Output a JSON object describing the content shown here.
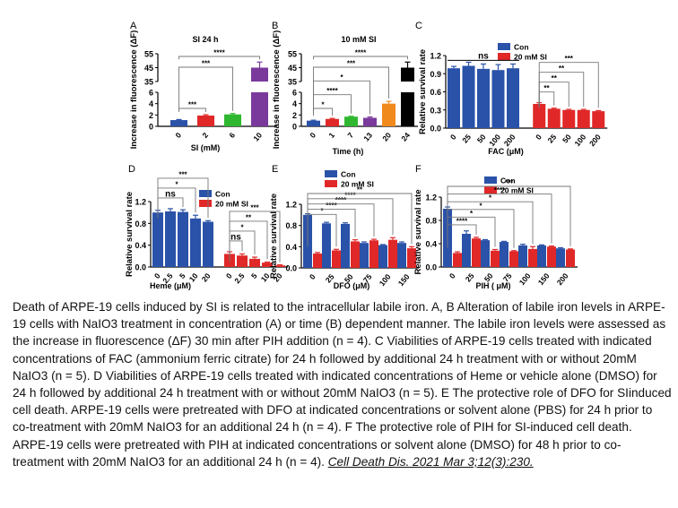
{
  "chart_data": [
    {
      "panel": "A",
      "type": "bar",
      "title": "SI 24 h",
      "xlabel": "SI (mM)",
      "ylabel": "Increase in fluorescence (ΔF)",
      "categories": [
        "0",
        "2",
        "6",
        "10"
      ],
      "values": [
        1.1,
        1.9,
        2.1,
        45
      ],
      "errors": [
        0.1,
        0.15,
        0.15,
        4
      ],
      "colors": [
        "#2a52a8",
        "#e02828",
        "#2fb82f",
        "#7a3a9c"
      ],
      "y_break": {
        "lower": [
          0,
          6
        ],
        "upper": [
          35,
          55
        ]
      },
      "yticks_lower": [
        0,
        2,
        4,
        6
      ],
      "yticks_upper": [
        35,
        45,
        55
      ],
      "significance": [
        {
          "from": 0,
          "to": 1,
          "label": "***"
        },
        {
          "from": 0,
          "to": 2,
          "label": "***"
        },
        {
          "from": 0,
          "to": 3,
          "label": "****"
        }
      ]
    },
    {
      "panel": "B",
      "type": "bar",
      "title": "10 mM SI",
      "xlabel": "Time (h)",
      "ylabel": "Increase in fluorescence (ΔF)",
      "categories": [
        "0",
        "1",
        "7",
        "13",
        "20",
        "24"
      ],
      "values": [
        1.0,
        1.3,
        1.7,
        1.5,
        4.0,
        45
      ],
      "errors": [
        0.08,
        0.1,
        0.08,
        0.15,
        0.4,
        4
      ],
      "colors": [
        "#2a52a8",
        "#e02828",
        "#2fb82f",
        "#7a3a9c",
        "#f08a1c",
        "#000000"
      ],
      "y_break": {
        "lower": [
          0,
          6
        ],
        "upper": [
          35,
          55
        ]
      },
      "yticks_lower": [
        0,
        2,
        4,
        6
      ],
      "yticks_upper": [
        35,
        45,
        55
      ],
      "significance": [
        {
          "from": 0,
          "to": 1,
          "label": "*"
        },
        {
          "from": 0,
          "to": 2,
          "label": "****"
        },
        {
          "from": 0,
          "to": 3,
          "label": "*"
        },
        {
          "from": 0,
          "to": 4,
          "label": "***"
        },
        {
          "from": 0,
          "to": 5,
          "label": "****"
        }
      ]
    },
    {
      "panel": "C",
      "type": "bar",
      "title": "",
      "xlabel": "FAC (μM)",
      "ylabel": "Relative survival rate",
      "ylim": [
        0,
        1.2
      ],
      "yticks": [
        "0.0",
        "0.3",
        "0.6",
        "0.9",
        "1.2"
      ],
      "layout": "grouped-separate",
      "legend": [
        "Con",
        "20 mM SI"
      ],
      "legend_position": "top-right",
      "series": [
        {
          "name": "Con",
          "color": "#2a52a8",
          "categories": [
            "0",
            "25",
            "50",
            "100",
            "200"
          ],
          "values": [
            0.99,
            1.03,
            0.98,
            0.96,
            0.99
          ],
          "errors": [
            0.03,
            0.06,
            0.08,
            0.09,
            0.07
          ]
        },
        {
          "name": "20 mM SI",
          "color": "#e02828",
          "categories": [
            "0",
            "25",
            "50",
            "100",
            "200"
          ],
          "values": [
            0.4,
            0.32,
            0.3,
            0.3,
            0.28
          ],
          "errors": [
            0.02,
            0.01,
            0.01,
            0.01,
            0.01
          ]
        }
      ],
      "significance": [
        {
          "series": 0,
          "from": 0,
          "to": 4,
          "label": "ns"
        },
        {
          "series": 1,
          "from": 0,
          "to": 1,
          "label": "**"
        },
        {
          "series": 1,
          "from": 0,
          "to": 2,
          "label": "**"
        },
        {
          "series": 1,
          "from": 0,
          "to": 3,
          "label": "**"
        },
        {
          "series": 1,
          "from": 0,
          "to": 4,
          "label": "***"
        }
      ]
    },
    {
      "panel": "D",
      "type": "bar",
      "title": "",
      "xlabel": "Heme (μM)",
      "ylabel": "Relative survival rate",
      "ylim": [
        0,
        1.2
      ],
      "yticks": [
        "0.0",
        "0.4",
        "0.8",
        "1.2"
      ],
      "layout": "grouped-separate",
      "legend": [
        "Con",
        "20 mM SI"
      ],
      "legend_position": "top-right",
      "series": [
        {
          "name": "Con",
          "color": "#2a52a8",
          "categories": [
            "0",
            "2.5",
            "5",
            "10",
            "20"
          ],
          "values": [
            1.0,
            1.02,
            1.01,
            0.89,
            0.83
          ],
          "errors": [
            0.04,
            0.05,
            0.04,
            0.06,
            0.02
          ]
        },
        {
          "name": "20 mM SI",
          "color": "#e02828",
          "categories": [
            "0",
            "2.5",
            "5",
            "10",
            "20"
          ],
          "values": [
            0.24,
            0.21,
            0.15,
            0.08,
            0.03
          ],
          "errors": [
            0.04,
            0.03,
            0.03,
            0.01,
            0.01
          ]
        }
      ],
      "significance": [
        {
          "series": 0,
          "from": 0,
          "to": 2,
          "label": "ns"
        },
        {
          "series": 0,
          "from": 0,
          "to": 3,
          "label": "*"
        },
        {
          "series": 0,
          "from": 0,
          "to": 4,
          "label": "***"
        },
        {
          "series": 1,
          "from": 0,
          "to": 1,
          "label": "ns"
        },
        {
          "series": 1,
          "from": 0,
          "to": 2,
          "label": "*"
        },
        {
          "series": 1,
          "from": 0,
          "to": 3,
          "label": "**"
        },
        {
          "series": 1,
          "from": 0,
          "to": 4,
          "label": "***"
        }
      ]
    },
    {
      "panel": "E",
      "type": "bar",
      "title": "",
      "xlabel": "DFO (μM)",
      "ylabel": "Relative survival rate",
      "ylim": [
        0,
        1.2
      ],
      "yticks": [
        "0.0",
        "0.4",
        "0.8",
        "1.2"
      ],
      "layout": "grouped-paired",
      "legend": [
        "Con",
        "20 mM SI"
      ],
      "legend_position": "top",
      "categories": [
        "0",
        "25",
        "50",
        "75",
        "100",
        "150"
      ],
      "series": [
        {
          "name": "Con",
          "color": "#2a52a8",
          "values": [
            1.0,
            0.84,
            0.83,
            0.47,
            0.43,
            0.47
          ],
          "errors": [
            0.02,
            0.02,
            0.02,
            0.02,
            0.01,
            0.02
          ]
        },
        {
          "name": "20 mM SI",
          "color": "#e02828",
          "values": [
            0.27,
            0.33,
            0.5,
            0.52,
            0.53,
            0.37
          ],
          "errors": [
            0.02,
            0.02,
            0.03,
            0.02,
            0.04,
            0.03
          ]
        }
      ],
      "significance": [
        {
          "from": 0,
          "to": 1,
          "label": "*"
        },
        {
          "from": 0,
          "to": 2,
          "label": "****"
        },
        {
          "from": 0,
          "to": 3,
          "label": "****"
        },
        {
          "from": 0,
          "to": 4,
          "label": "****"
        },
        {
          "from": 0,
          "to": 5,
          "label": "**"
        }
      ]
    },
    {
      "panel": "F",
      "type": "bar",
      "title": "",
      "xlabel": "PIH ( μM)",
      "ylabel": "Relative survival rate",
      "ylim": [
        0,
        1.2
      ],
      "yticks": [
        "0.0",
        "0.4",
        "0.8",
        "1.2"
      ],
      "layout": "grouped-paired",
      "legend": [
        "Con",
        "20 mM SI"
      ],
      "legend_position": "top",
      "categories": [
        "0",
        "25",
        "50",
        "75",
        "100",
        "150",
        "200"
      ],
      "series": [
        {
          "name": "Con",
          "color": "#2a52a8",
          "values": [
            1.0,
            0.57,
            0.46,
            0.43,
            0.37,
            0.37,
            0.32
          ],
          "errors": [
            0.03,
            0.05,
            0.01,
            0.01,
            0.02,
            0.01,
            0.01
          ]
        },
        {
          "name": "20 mM SI",
          "color": "#e02828",
          "values": [
            0.24,
            0.49,
            0.28,
            0.27,
            0.31,
            0.35,
            0.3
          ],
          "errors": [
            0.02,
            0.02,
            0.02,
            0.01,
            0.04,
            0.01,
            0.01
          ]
        }
      ],
      "significance": [
        {
          "from": 0,
          "to": 1,
          "label": "****"
        },
        {
          "from": 0,
          "to": 2,
          "label": "*"
        },
        {
          "from": 0,
          "to": 3,
          "label": "*"
        },
        {
          "from": 0,
          "to": 4,
          "label": "*"
        },
        {
          "from": 0,
          "to": 5,
          "label": "****"
        },
        {
          "from": 0,
          "to": 6,
          "label": "***"
        }
      ]
    }
  ],
  "caption": {
    "text": "Death of ARPE-19 cells induced by SI is related to the intracellular labile iron. A, B Alteration of labile iron levels in ARPE-19 cells with NaIO3 treatment in concentration (A) or time (B) dependent manner. The labile iron levels were assessed as the increase in fluorescence (ΔF) 30 min after PIH addition (n = 4). C Viabilities of ARPE-19 cells treated with indicated concentrations of FAC (ammonium ferric citrate) for 24 h followed by additional 24 h treatment with or without 20mM NaIO3 (n = 5). D Viabilities of ARPE-19 cells treated with indicated concentrations of Heme or vehicle alone (DMSO) for 24 h followed by additional 24 h treatment with or without 20mM NaIO3 (n = 5). E The protective role of DFO for SIinduced cell death. ARPE-19 cells were pretreated with DFO at indicated concentrations or solvent alone (PBS) for 24 h prior to co-treatment with 20mM NaIO3 for an additional 24 h (n = 4). F The protective role of PIH for SI-induced cell death. ARPE-19 cells were pretreated with PIH at indicated concentrations or solvent alone (DMSO) for 48 h prior to co-treatment with 20mM NaIO3 for an additional 24 h (n = 4).",
    "citation": "Cell Death Dis. 2021 Mar 3;12(3):230."
  }
}
